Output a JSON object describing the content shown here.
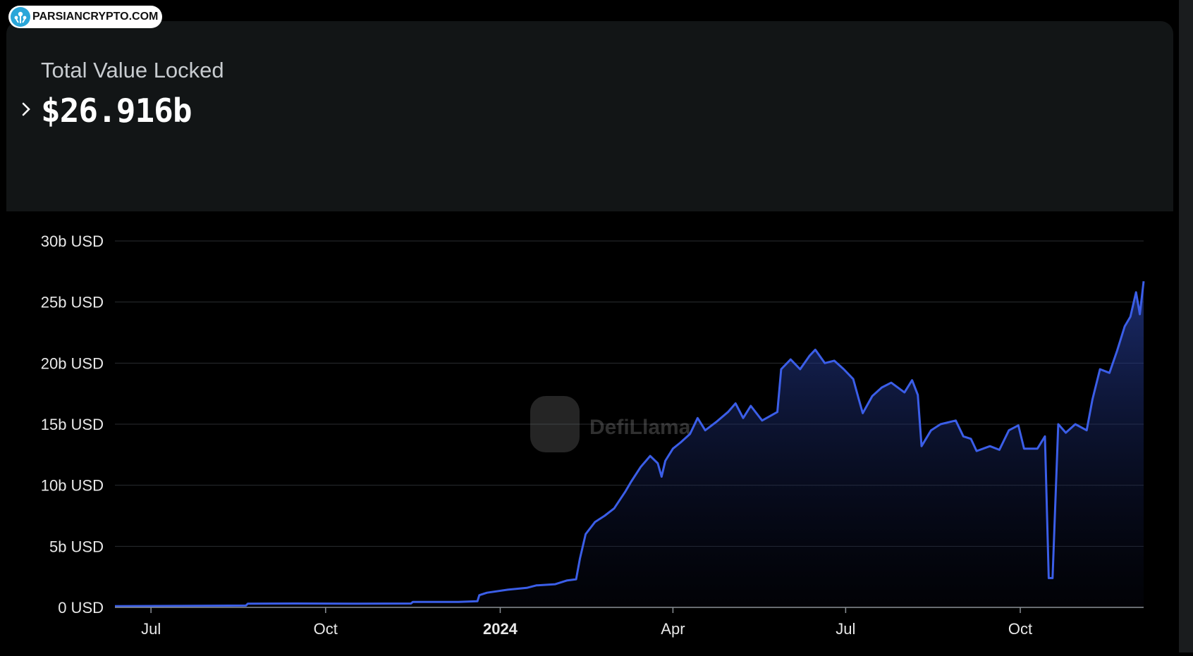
{
  "badge": {
    "text": "PARSIANCRYPTO.COM"
  },
  "stat": {
    "label": "Total Value Locked",
    "value": "$26.916b"
  },
  "watermark": {
    "text": "DefiLlama"
  },
  "colors": {
    "line": "#3b5ee8",
    "panel": "#121516",
    "grid": "#2a2d31"
  },
  "chart_data": {
    "type": "area",
    "title": "",
    "xlabel": "",
    "ylabel": "",
    "ylim": [
      0,
      30
    ],
    "yticks": [
      "0 USD",
      "5b USD",
      "10b USD",
      "15b USD",
      "20b USD",
      "25b USD",
      "30b USD"
    ],
    "yticks_values": [
      0,
      5,
      10,
      15,
      20,
      25,
      30
    ],
    "xticks": [
      {
        "label": "Jul",
        "date": "2023-07-01",
        "bold": false
      },
      {
        "label": "Oct",
        "date": "2023-10-01",
        "bold": false
      },
      {
        "label": "2024",
        "date": "2024-01-01",
        "bold": true
      },
      {
        "label": "Apr",
        "date": "2024-04-01",
        "bold": false
      },
      {
        "label": "Jul",
        "date": "2024-07-01",
        "bold": false
      },
      {
        "label": "Oct",
        "date": "2024-10-01",
        "bold": false
      }
    ],
    "grid": true,
    "legend": "none",
    "series": [
      {
        "unit": "billion USD",
        "points": [
          [
            "2023-06-12",
            0.1
          ],
          [
            "2023-07-15",
            0.12
          ],
          [
            "2023-08-20",
            0.15
          ],
          [
            "2023-08-21",
            0.3
          ],
          [
            "2023-09-15",
            0.32
          ],
          [
            "2023-10-15",
            0.3
          ],
          [
            "2023-11-15",
            0.32
          ],
          [
            "2023-11-16",
            0.45
          ],
          [
            "2023-12-10",
            0.45
          ],
          [
            "2023-12-20",
            0.5
          ],
          [
            "2023-12-21",
            1.0
          ],
          [
            "2023-12-25",
            1.2
          ],
          [
            "2024-01-05",
            1.45
          ],
          [
            "2024-01-15",
            1.6
          ],
          [
            "2024-01-20",
            1.8
          ],
          [
            "2024-01-30",
            1.9
          ],
          [
            "2024-02-05",
            2.2
          ],
          [
            "2024-02-10",
            2.3
          ],
          [
            "2024-02-12",
            4.0
          ],
          [
            "2024-02-15",
            6.0
          ],
          [
            "2024-02-20",
            7.0
          ],
          [
            "2024-02-25",
            7.5
          ],
          [
            "2024-03-01",
            8.1
          ],
          [
            "2024-03-07",
            9.5
          ],
          [
            "2024-03-10",
            10.3
          ],
          [
            "2024-03-15",
            11.5
          ],
          [
            "2024-03-20",
            12.4
          ],
          [
            "2024-03-24",
            11.8
          ],
          [
            "2024-03-26",
            10.7
          ],
          [
            "2024-03-28",
            12.0
          ],
          [
            "2024-04-01",
            13.0
          ],
          [
            "2024-04-05",
            13.5
          ],
          [
            "2024-04-10",
            14.2
          ],
          [
            "2024-04-14",
            15.5
          ],
          [
            "2024-04-18",
            14.5
          ],
          [
            "2024-04-24",
            15.2
          ],
          [
            "2024-04-30",
            16.0
          ],
          [
            "2024-05-04",
            16.7
          ],
          [
            "2024-05-08",
            15.5
          ],
          [
            "2024-05-12",
            16.5
          ],
          [
            "2024-05-18",
            15.3
          ],
          [
            "2024-05-26",
            16.0
          ],
          [
            "2024-05-28",
            19.5
          ],
          [
            "2024-06-02",
            20.3
          ],
          [
            "2024-06-07",
            19.5
          ],
          [
            "2024-06-12",
            20.6
          ],
          [
            "2024-06-15",
            21.1
          ],
          [
            "2024-06-20",
            20.0
          ],
          [
            "2024-06-25",
            20.2
          ],
          [
            "2024-06-30",
            19.5
          ],
          [
            "2024-07-05",
            18.7
          ],
          [
            "2024-07-08",
            17.0
          ],
          [
            "2024-07-10",
            15.9
          ],
          [
            "2024-07-15",
            17.3
          ],
          [
            "2024-07-20",
            18.0
          ],
          [
            "2024-07-25",
            18.4
          ],
          [
            "2024-08-01",
            17.6
          ],
          [
            "2024-08-05",
            18.6
          ],
          [
            "2024-08-08",
            17.4
          ],
          [
            "2024-08-10",
            13.2
          ],
          [
            "2024-08-15",
            14.5
          ],
          [
            "2024-08-20",
            15.0
          ],
          [
            "2024-08-28",
            15.3
          ],
          [
            "2024-09-01",
            14.0
          ],
          [
            "2024-09-05",
            13.8
          ],
          [
            "2024-09-08",
            12.8
          ],
          [
            "2024-09-15",
            13.2
          ],
          [
            "2024-09-20",
            12.9
          ],
          [
            "2024-09-25",
            14.5
          ],
          [
            "2024-09-30",
            14.9
          ],
          [
            "2024-10-03",
            13.0
          ],
          [
            "2024-10-10",
            13.0
          ],
          [
            "2024-10-14",
            14.0
          ],
          [
            "2024-10-16",
            2.4
          ],
          [
            "2024-10-18",
            2.4
          ],
          [
            "2024-10-21",
            15.0
          ],
          [
            "2024-10-25",
            14.3
          ],
          [
            "2024-10-30",
            15.0
          ],
          [
            "2024-11-05",
            14.5
          ],
          [
            "2024-11-08",
            17.0
          ],
          [
            "2024-11-12",
            19.5
          ],
          [
            "2024-11-17",
            19.2
          ],
          [
            "2024-11-21",
            21.0
          ],
          [
            "2024-11-25",
            23.0
          ],
          [
            "2024-11-28",
            23.8
          ],
          [
            "2024-12-01",
            25.8
          ],
          [
            "2024-12-03",
            24.0
          ],
          [
            "2024-12-05",
            26.7
          ]
        ]
      }
    ]
  }
}
